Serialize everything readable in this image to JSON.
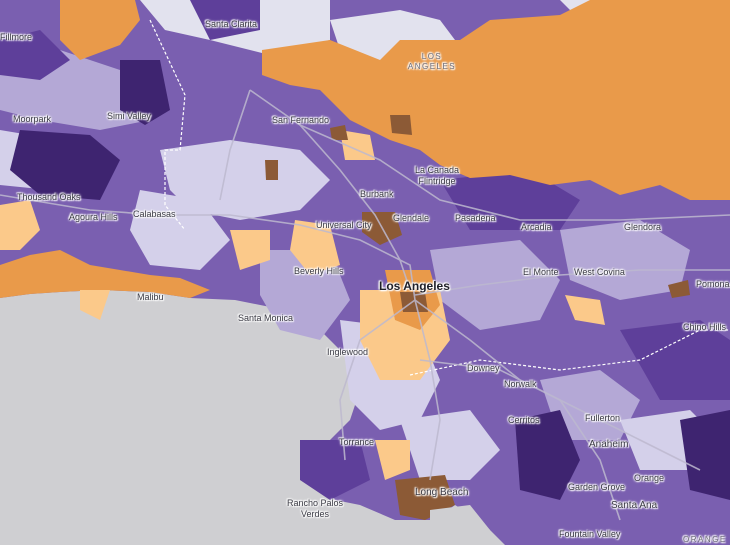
{
  "map": {
    "colors": {
      "ocean": "#cfcfd2",
      "land_base": "#7a5fb0",
      "purple_light": "#d4d0ea",
      "purple_midlight": "#b4a8d6",
      "purple_mid": "#8f78c2",
      "purple_dark": "#5e3f9a",
      "purple_darkest": "#3e2470",
      "orange_light": "#fbc98a",
      "orange": "#e99a4a",
      "brown": "#8c5a36",
      "mountain_grey": "#e2e2ee",
      "roads": "#b7b4c8"
    },
    "labels": {
      "fillmore": "Fillmore",
      "santa_clarita": "Santa Clarita",
      "la_county_1": "LOS",
      "la_county_2": "ANGELES",
      "moorpark": "Moorpark",
      "simi_valley": "Simi Valley",
      "san_fernando": "San Fernando",
      "burbank": "Burbank",
      "la_canada_1": "La Canada",
      "la_canada_2": "Flintridge",
      "thousand_oaks": "Thousand Oaks",
      "agoura_hills": "Agoura Hills",
      "calabasas": "Calabasas",
      "glendale": "Glendale",
      "pasadena": "Pasadena",
      "universal_city": "Universal City",
      "arcadia": "Arcadia",
      "glendora": "Glendora",
      "beverly_hills": "Beverly Hills",
      "los_angeles": "Los Angeles",
      "el_monte": "El Monte",
      "west_covina": "West Covina",
      "pomona": "Pomona",
      "malibu": "Malibu",
      "santa_monica": "Santa Monica",
      "chino_hills": "Chino Hills",
      "inglewood": "Inglewood",
      "downey": "Downey",
      "norwalk": "Norwalk",
      "cerritos": "Cerritos",
      "fullerton": "Fullerton",
      "torrance": "Torrance",
      "anaheim": "Anaheim",
      "orange": "Orange",
      "garden_grove": "Garden Grove",
      "long_beach": "Long Beach",
      "santa_ana": "Santa Ana",
      "rancho_1": "Rancho Palos",
      "rancho_2": "Verdes",
      "fountain_valley": "Fountain Valley",
      "orange_county": "ORANGE"
    }
  }
}
